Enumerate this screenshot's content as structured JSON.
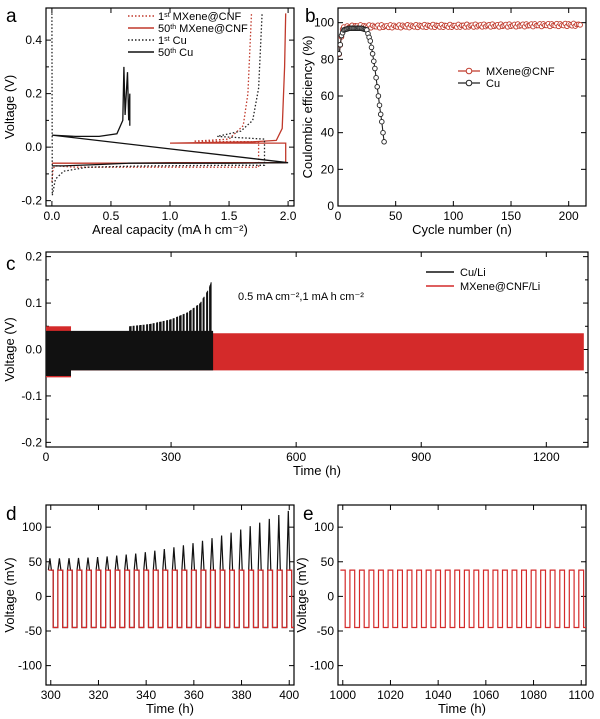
{
  "chart_data": [
    {
      "panel": "a",
      "type": "line",
      "xlabel": "Areal capacity (mA h cm⁻²)",
      "ylabel": "Voltage (V)",
      "xlim": [
        -0.05,
        2.05
      ],
      "ylim": [
        -0.22,
        0.52
      ],
      "xticks": [
        0.0,
        0.5,
        1.0,
        1.5,
        2.0
      ],
      "xtick_labels": [
        "0.0",
        "0.5",
        "1.0",
        "1.5",
        "2.0"
      ],
      "yticks": [
        -0.2,
        -0.1,
        0.0,
        0.1,
        0.2,
        0.3,
        0.4
      ],
      "ytick_labels": [
        "-0.2",
        "",
        "0.0",
        "",
        "0.2",
        "",
        "0.4"
      ],
      "series": [
        {
          "name": "1st MXene@CNF",
          "name_parts": {
            "main": "1",
            "sup": "st",
            "rest": " MXene@CNF"
          },
          "color": "#c0392b",
          "dash": "dot",
          "points": [
            [
              0.0,
              -0.13
            ],
            [
              0.01,
              -0.08
            ],
            [
              0.03,
              -0.07
            ],
            [
              0.2,
              -0.075
            ],
            [
              0.6,
              -0.075
            ],
            [
              1.0,
              -0.075
            ],
            [
              1.5,
              -0.075
            ],
            [
              1.75,
              -0.075
            ],
            [
              1.75,
              0.02
            ],
            [
              1.2,
              0.022
            ],
            [
              1.5,
              0.03
            ],
            [
              1.62,
              0.08
            ],
            [
              1.66,
              0.2
            ],
            [
              1.69,
              0.5
            ]
          ]
        },
        {
          "name": "50th MXene@CNF",
          "name_parts": {
            "main": "50",
            "sup": "th",
            "rest": " MXene@CNF"
          },
          "color": "#c0392b",
          "dash": "solid",
          "points": [
            [
              0.0,
              -0.06
            ],
            [
              0.2,
              -0.06
            ],
            [
              0.6,
              -0.06
            ],
            [
              1.0,
              -0.058
            ],
            [
              1.5,
              -0.058
            ],
            [
              1.98,
              -0.058
            ],
            [
              1.98,
              0.015
            ],
            [
              1.0,
              0.015
            ],
            [
              1.7,
              0.02
            ],
            [
              1.9,
              0.025
            ],
            [
              1.95,
              0.07
            ],
            [
              1.97,
              0.3
            ],
            [
              1.98,
              0.5
            ]
          ]
        },
        {
          "name": "1st Cu",
          "name_parts": {
            "main": "1",
            "sup": "st",
            "rest": " Cu"
          },
          "color": "#222222",
          "dash": "dot",
          "points": [
            [
              0.0,
              0.5
            ],
            [
              0.003,
              -0.18
            ],
            [
              0.03,
              -0.12
            ],
            [
              0.1,
              -0.09
            ],
            [
              0.3,
              -0.075
            ],
            [
              0.8,
              -0.07
            ],
            [
              1.5,
              -0.068
            ],
            [
              1.8,
              -0.068
            ],
            [
              1.8,
              0.03
            ],
            [
              1.4,
              0.04
            ],
            [
              1.6,
              0.06
            ],
            [
              1.7,
              0.1
            ],
            [
              1.75,
              0.22
            ],
            [
              1.78,
              0.5
            ]
          ]
        },
        {
          "name": "50th Cu",
          "name_parts": {
            "main": "50",
            "sup": "th",
            "rest": " Cu"
          },
          "color": "#111111",
          "dash": "solid",
          "points": [
            [
              0.0,
              -0.07
            ],
            [
              0.1,
              -0.07
            ],
            [
              0.4,
              -0.065
            ],
            [
              0.65,
              -0.06
            ],
            [
              1.0,
              -0.06
            ],
            [
              1.5,
              -0.06
            ],
            [
              2.0,
              -0.058
            ],
            [
              2.0,
              -0.058
            ],
            [
              0.0,
              0.045
            ],
            [
              0.2,
              0.04
            ],
            [
              0.4,
              0.04
            ],
            [
              0.55,
              0.05
            ],
            [
              0.6,
              0.1
            ],
            [
              0.61,
              0.3
            ],
            [
              0.62,
              0.12
            ],
            [
              0.64,
              0.28
            ],
            [
              0.65,
              0.1
            ],
            [
              0.66,
              0.2
            ],
            [
              0.66,
              0.08
            ]
          ]
        }
      ]
    },
    {
      "panel": "b",
      "type": "line",
      "xlabel": "Cycle number (n)",
      "ylabel": "Coulombic efficiency (%)",
      "xlim": [
        0,
        215
      ],
      "ylim": [
        0,
        108
      ],
      "xticks": [
        0,
        50,
        100,
        150,
        200
      ],
      "xtick_labels": [
        "0",
        "50",
        "100",
        "150",
        "200"
      ],
      "yticks": [
        0,
        20,
        40,
        60,
        80,
        100
      ],
      "ytick_labels": [
        "0",
        "20",
        "40",
        "60",
        "80",
        "100"
      ],
      "series": [
        {
          "name": "MXene@CNF",
          "color": "#c0392b",
          "marker": "circle",
          "points": [
            [
              1,
              82
            ],
            [
              2,
              88
            ],
            [
              3,
              93
            ],
            [
              4,
              96
            ],
            [
              5,
              97
            ],
            [
              8,
              97.5
            ],
            [
              15,
              98
            ],
            [
              30,
              98
            ],
            [
              50,
              98
            ],
            [
              75,
              98.2
            ],
            [
              100,
              98.2
            ],
            [
              125,
              98.4
            ],
            [
              150,
              98.5
            ],
            [
              175,
              98.7
            ],
            [
              200,
              98.8
            ],
            [
              210,
              98.8
            ]
          ]
        },
        {
          "name": "Cu",
          "color": "#222222",
          "marker": "circle",
          "points": [
            [
              1,
              83
            ],
            [
              3,
              93
            ],
            [
              5,
              96
            ],
            [
              10,
              97
            ],
            [
              15,
              97
            ],
            [
              20,
              97
            ],
            [
              25,
              96
            ],
            [
              28,
              90
            ],
            [
              30,
              83
            ],
            [
              32,
              75
            ],
            [
              34,
              65
            ],
            [
              36,
              55
            ],
            [
              37,
              50
            ],
            [
              38,
              46
            ],
            [
              39,
              40
            ],
            [
              40,
              35
            ]
          ]
        }
      ]
    },
    {
      "panel": "c",
      "type": "line",
      "xlabel": "Time (h)",
      "ylabel": "Voltage (V)",
      "xlim": [
        0,
        1300
      ],
      "ylim": [
        -0.21,
        0.21
      ],
      "xticks": [
        0,
        300,
        600,
        900,
        1200
      ],
      "xtick_labels": [
        "0",
        "300",
        "600",
        "900",
        "1200"
      ],
      "yticks": [
        -0.2,
        -0.15,
        -0.1,
        -0.05,
        0.0,
        0.05,
        0.1,
        0.15,
        0.2
      ],
      "ytick_labels": [
        "-0.2",
        "",
        "-0.1",
        "",
        "0.0",
        "",
        "0.1",
        "",
        "0.2"
      ],
      "annotation": "0.5 mA cm⁻²,1 mA h cm⁻²",
      "series": [
        {
          "name": "Cu/Li",
          "color": "#111111",
          "t_end": 400,
          "band_upper": 0.04,
          "band_lower": -0.045,
          "spikes": [
            [
              200,
              0.05
            ],
            [
              250,
              0.055
            ],
            [
              300,
              0.065
            ],
            [
              340,
              0.08
            ],
            [
              370,
              0.1
            ],
            [
              390,
              0.13
            ],
            [
              398,
              0.15
            ]
          ]
        },
        {
          "name": "MXene@CNF/Li",
          "color": "#d42a2a",
          "t_end": 1290,
          "band_upper": 0.035,
          "band_lower": -0.045
        }
      ]
    },
    {
      "panel": "d",
      "type": "line",
      "xlabel": "Time (h)",
      "ylabel": "Voltage (mV)",
      "xlim": [
        298,
        402
      ],
      "ylim": [
        -128,
        132
      ],
      "xticks": [
        300,
        320,
        340,
        360,
        380,
        400
      ],
      "xtick_labels": [
        "300",
        "320",
        "340",
        "360",
        "380",
        "400"
      ],
      "yticks": [
        -100,
        -50,
        0,
        50,
        100
      ],
      "ytick_labels": [
        "-100",
        "-50",
        "0",
        "50",
        "100"
      ],
      "cycle_period_h": 4,
      "series": [
        {
          "name": "Cu/Li",
          "color": "#111111",
          "plateau_upper": 38,
          "plateau_lower": -45,
          "spike_start": 55,
          "spike_end": 125
        },
        {
          "name": "MXene@CNF/Li",
          "color": "#d42a2a",
          "plateau_upper": 38,
          "plateau_lower": -45
        }
      ]
    },
    {
      "panel": "e",
      "type": "line",
      "xlabel": "Time (h)",
      "ylabel": "Voltage (mV)",
      "xlim": [
        998,
        1102
      ],
      "ylim": [
        -128,
        132
      ],
      "xticks": [
        1000,
        1020,
        1040,
        1060,
        1080,
        1100
      ],
      "xtick_labels": [
        "1000",
        "1020",
        "1040",
        "1060",
        "1080",
        "1100"
      ],
      "yticks": [
        -100,
        -50,
        0,
        50,
        100
      ],
      "ytick_labels": [
        "-100",
        "-50",
        "0",
        "50",
        "100"
      ],
      "cycle_period_h": 4,
      "series": [
        {
          "name": "MXene@CNF/Li",
          "color": "#d42a2a",
          "plateau_upper": 38,
          "plateau_lower": -45
        }
      ]
    }
  ]
}
